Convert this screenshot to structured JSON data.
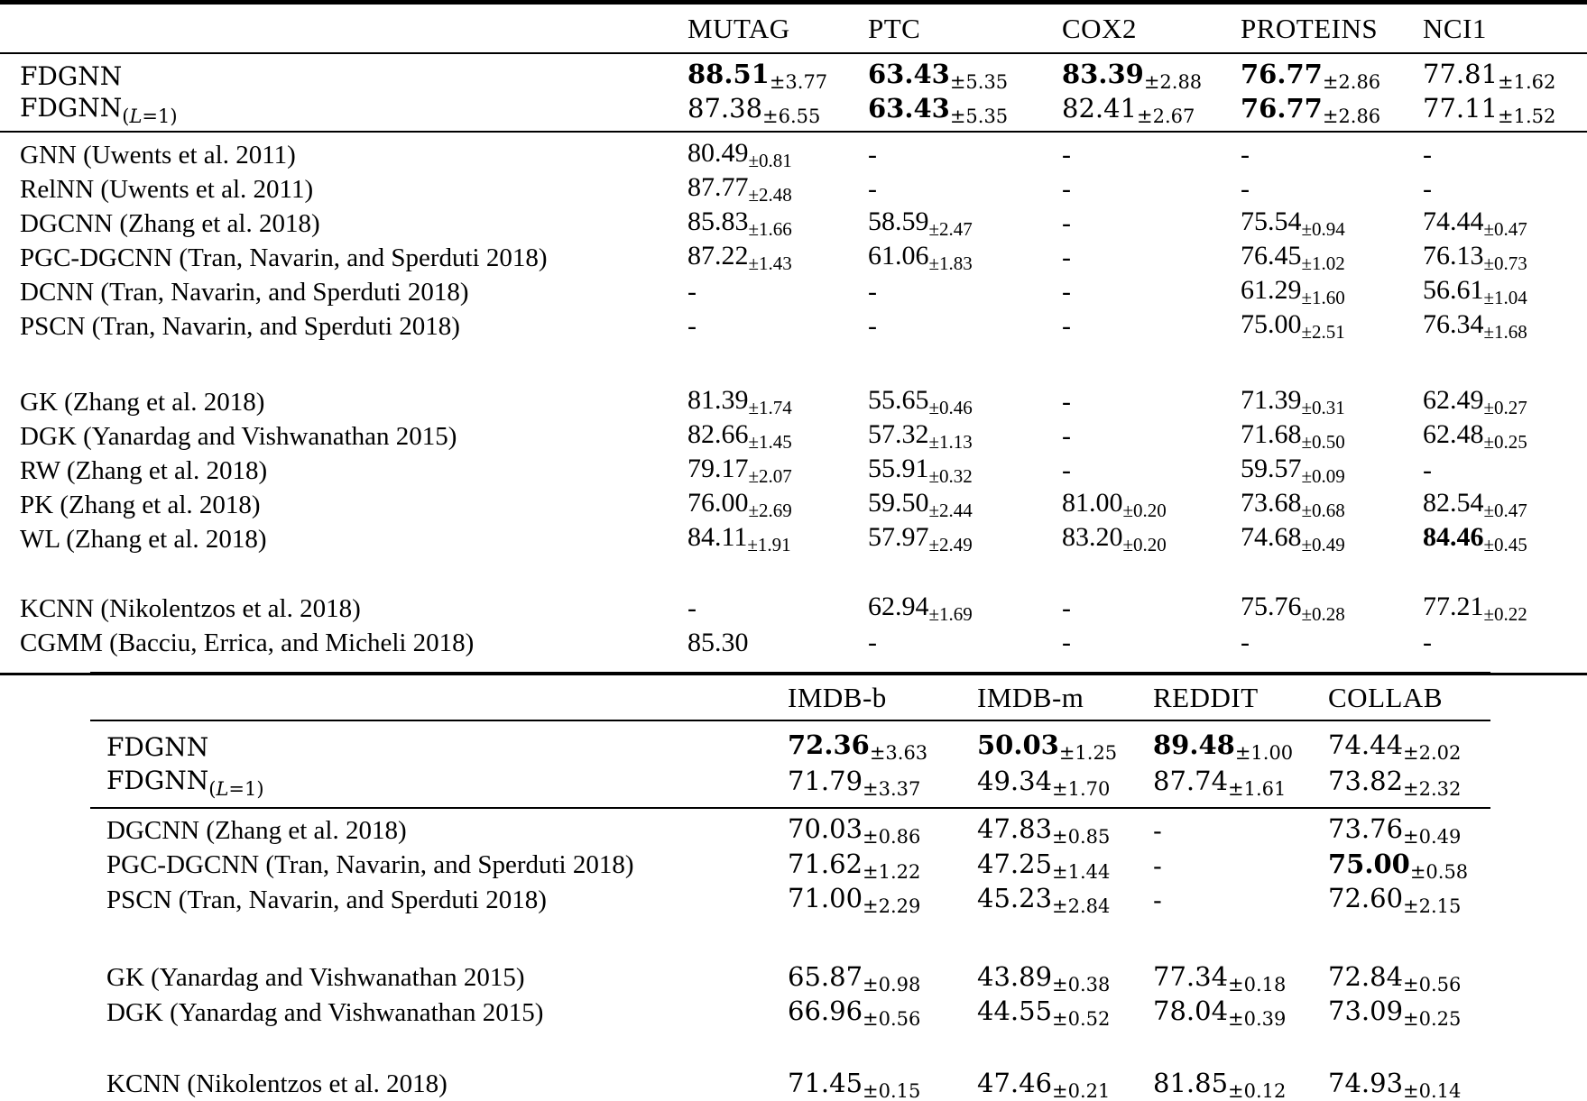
{
  "page": {
    "type": "paper-results-tables",
    "background": "#ffffff",
    "text_color": "#000000"
  },
  "tables": [
    {
      "id": "bio-chem-benchmarks",
      "columns": [
        "MUTAG",
        "PTC",
        "COX2",
        "PROTEINS",
        "NCI1"
      ],
      "groups": [
        {
          "rows": [
            {
              "label": "FDGNN",
              "cells": [
                {
                  "v": "88.51",
                  "pm": "±3.77",
                  "bold": true
                },
                {
                  "v": "63.43",
                  "pm": "±5.35",
                  "bold": true
                },
                {
                  "v": "83.39",
                  "pm": "±2.88",
                  "bold": true
                },
                {
                  "v": "76.77",
                  "pm": "±2.86",
                  "bold": true
                },
                {
                  "v": "77.81",
                  "pm": "±1.62"
                }
              ]
            },
            {
              "label": "FDGNN",
              "label_sub": {
                "pre": "(",
                "var": "L",
                "post": "=1)"
              },
              "cells": [
                {
                  "v": "87.38",
                  "pm": "±6.55"
                },
                {
                  "v": "63.43",
                  "pm": "±5.35",
                  "bold": true
                },
                {
                  "v": "82.41",
                  "pm": "±2.67"
                },
                {
                  "v": "76.77",
                  "pm": "±2.86",
                  "bold": true
                },
                {
                  "v": "77.11",
                  "pm": "±1.52"
                }
              ]
            }
          ]
        },
        {
          "rows": [
            {
              "label": "GNN (Uwents et al. 2011)",
              "cells": [
                {
                  "v": "80.49",
                  "pm": "±0.81"
                },
                {
                  "v": "-"
                },
                {
                  "v": "-"
                },
                {
                  "v": "-"
                },
                {
                  "v": "-"
                }
              ]
            },
            {
              "label": "RelNN (Uwents et al. 2011)",
              "cells": [
                {
                  "v": "87.77",
                  "pm": "±2.48"
                },
                {
                  "v": "-"
                },
                {
                  "v": "-"
                },
                {
                  "v": "-"
                },
                {
                  "v": "-"
                }
              ]
            },
            {
              "label": "DGCNN (Zhang et al. 2018)",
              "cells": [
                {
                  "v": "85.83",
                  "pm": "±1.66"
                },
                {
                  "v": "58.59",
                  "pm": "±2.47"
                },
                {
                  "v": "-"
                },
                {
                  "v": "75.54",
                  "pm": "±0.94"
                },
                {
                  "v": "74.44",
                  "pm": "±0.47"
                }
              ]
            },
            {
              "label": "PGC-DGCNN (Tran, Navarin, and Sperduti 2018)",
              "cells": [
                {
                  "v": "87.22",
                  "pm": "±1.43"
                },
                {
                  "v": "61.06",
                  "pm": "±1.83"
                },
                {
                  "v": "-"
                },
                {
                  "v": "76.45",
                  "pm": "±1.02"
                },
                {
                  "v": "76.13",
                  "pm": "±0.73"
                }
              ]
            },
            {
              "label": "DCNN (Tran, Navarin, and Sperduti 2018)",
              "cells": [
                {
                  "v": "-"
                },
                {
                  "v": "-"
                },
                {
                  "v": "-"
                },
                {
                  "v": "61.29",
                  "pm": "±1.60"
                },
                {
                  "v": "56.61",
                  "pm": "±1.04"
                }
              ]
            },
            {
              "label": "PSCN (Tran, Navarin, and Sperduti 2018)",
              "cells": [
                {
                  "v": "-"
                },
                {
                  "v": "-"
                },
                {
                  "v": "-"
                },
                {
                  "v": "75.00",
                  "pm": "±2.51"
                },
                {
                  "v": "76.34",
                  "pm": "±1.68"
                }
              ]
            }
          ]
        },
        {
          "rows": [
            {
              "label": "GK (Zhang et al. 2018)",
              "cells": [
                {
                  "v": "81.39",
                  "pm": "±1.74"
                },
                {
                  "v": "55.65",
                  "pm": "±0.46"
                },
                {
                  "v": "-"
                },
                {
                  "v": "71.39",
                  "pm": "±0.31"
                },
                {
                  "v": "62.49",
                  "pm": "±0.27"
                }
              ]
            },
            {
              "label": "DGK (Yanardag and Vishwanathan 2015)",
              "cells": [
                {
                  "v": "82.66",
                  "pm": "±1.45"
                },
                {
                  "v": "57.32",
                  "pm": "±1.13"
                },
                {
                  "v": "-"
                },
                {
                  "v": "71.68",
                  "pm": "±0.50"
                },
                {
                  "v": "62.48",
                  "pm": "±0.25"
                }
              ]
            },
            {
              "label": "RW (Zhang et al. 2018)",
              "cells": [
                {
                  "v": "79.17",
                  "pm": "±2.07"
                },
                {
                  "v": "55.91",
                  "pm": "±0.32"
                },
                {
                  "v": "-"
                },
                {
                  "v": "59.57",
                  "pm": "±0.09"
                },
                {
                  "v": "-"
                }
              ]
            },
            {
              "label": "PK (Zhang et al. 2018)",
              "cells": [
                {
                  "v": "76.00",
                  "pm": "±2.69"
                },
                {
                  "v": "59.50",
                  "pm": "±2.44"
                },
                {
                  "v": "81.00",
                  "pm": "±0.20"
                },
                {
                  "v": "73.68",
                  "pm": "±0.68"
                },
                {
                  "v": "82.54",
                  "pm": "±0.47"
                }
              ]
            },
            {
              "label": "WL (Zhang et al. 2018)",
              "cells": [
                {
                  "v": "84.11",
                  "pm": "±1.91"
                },
                {
                  "v": "57.97",
                  "pm": "±2.49"
                },
                {
                  "v": "83.20",
                  "pm": "±0.20"
                },
                {
                  "v": "74.68",
                  "pm": "±0.49"
                },
                {
                  "v": "84.46",
                  "pm": "±0.45",
                  "bold": true
                }
              ]
            }
          ]
        },
        {
          "rows": [
            {
              "label": "KCNN (Nikolentzos et al. 2018)",
              "cells": [
                {
                  "v": "-"
                },
                {
                  "v": "62.94",
                  "pm": "±1.69"
                },
                {
                  "v": "-"
                },
                {
                  "v": "75.76",
                  "pm": "±0.28"
                },
                {
                  "v": "77.21",
                  "pm": "±0.22"
                }
              ]
            },
            {
              "label": "CGMM (Bacciu, Errica, and Micheli 2018)",
              "cells": [
                {
                  "v": "85.30"
                },
                {
                  "v": "-"
                },
                {
                  "v": "-"
                },
                {
                  "v": "-"
                },
                {
                  "v": "-"
                }
              ]
            }
          ]
        }
      ]
    },
    {
      "id": "social-benchmarks",
      "columns": [
        "IMDB-b",
        "IMDB-m",
        "REDDIT",
        "COLLAB"
      ],
      "groups": [
        {
          "rows": [
            {
              "label": "FDGNN",
              "cells": [
                {
                  "v": "72.36",
                  "pm": "±3.63",
                  "bold": true
                },
                {
                  "v": "50.03",
                  "pm": "±1.25",
                  "bold": true
                },
                {
                  "v": "89.48",
                  "pm": "±1.00",
                  "bold": true
                },
                {
                  "v": "74.44",
                  "pm": "±2.02"
                }
              ]
            },
            {
              "label": "FDGNN",
              "label_sub": {
                "pre": "(",
                "var": "L",
                "post": "=1)"
              },
              "cells": [
                {
                  "v": "71.79",
                  "pm": "±3.37"
                },
                {
                  "v": "49.34",
                  "pm": "±1.70"
                },
                {
                  "v": "87.74",
                  "pm": "±1.61"
                },
                {
                  "v": "73.82",
                  "pm": "±2.32"
                }
              ]
            }
          ]
        },
        {
          "rows": [
            {
              "label": "DGCNN (Zhang et al. 2018)",
              "cells": [
                {
                  "v": "70.03",
                  "pm": "±0.86"
                },
                {
                  "v": "47.83",
                  "pm": "±0.85"
                },
                {
                  "v": "-"
                },
                {
                  "v": "73.76",
                  "pm": "±0.49"
                }
              ]
            },
            {
              "label": "PGC-DGCNN (Tran, Navarin, and Sperduti 2018)",
              "cells": [
                {
                  "v": "71.62",
                  "pm": "±1.22"
                },
                {
                  "v": "47.25",
                  "pm": "±1.44"
                },
                {
                  "v": "-"
                },
                {
                  "v": "75.00",
                  "pm": "±0.58",
                  "bold": true
                }
              ]
            },
            {
              "label": "PSCN (Tran, Navarin, and Sperduti 2018)",
              "cells": [
                {
                  "v": "71.00",
                  "pm": "±2.29"
                },
                {
                  "v": "45.23",
                  "pm": "±2.84"
                },
                {
                  "v": "-"
                },
                {
                  "v": "72.60",
                  "pm": "±2.15"
                }
              ]
            }
          ]
        },
        {
          "rows": [
            {
              "label": "GK (Yanardag and Vishwanathan 2015)",
              "cells": [
                {
                  "v": "65.87",
                  "pm": "±0.98"
                },
                {
                  "v": "43.89",
                  "pm": "±0.38"
                },
                {
                  "v": "77.34",
                  "pm": "±0.18"
                },
                {
                  "v": "72.84",
                  "pm": "±0.56"
                }
              ]
            },
            {
              "label": "DGK (Yanardag and Vishwanathan 2015)",
              "cells": [
                {
                  "v": "66.96",
                  "pm": "±0.56"
                },
                {
                  "v": "44.55",
                  "pm": "±0.52"
                },
                {
                  "v": "78.04",
                  "pm": "±0.39"
                },
                {
                  "v": "73.09",
                  "pm": "±0.25"
                }
              ]
            }
          ]
        },
        {
          "rows": [
            {
              "label": "KCNN (Nikolentzos et al. 2018)",
              "cells": [
                {
                  "v": "71.45",
                  "pm": "±0.15"
                },
                {
                  "v": "47.46",
                  "pm": "±0.21"
                },
                {
                  "v": "81.85",
                  "pm": "±0.12"
                },
                {
                  "v": "74.93",
                  "pm": "±0.14"
                }
              ]
            }
          ]
        }
      ]
    }
  ]
}
